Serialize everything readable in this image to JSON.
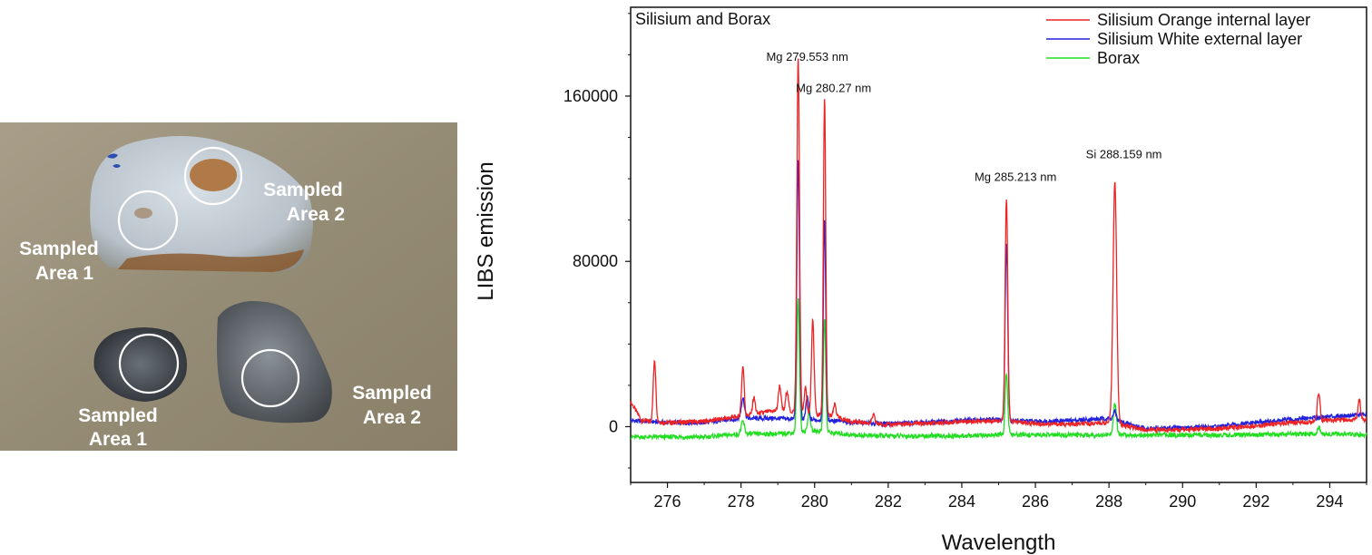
{
  "photo": {
    "sample_top": {
      "label_1_line1": "Sampled",
      "label_1_line2": "Area 1",
      "label_2_line1": "Sampled",
      "label_2_line2": "Area 2"
    },
    "sample_bottom": {
      "label_1_line1": "Sampled",
      "label_1_line2": "Area 1",
      "label_2_line1": "Sampled",
      "label_2_line2": "Area 2"
    }
  },
  "chart_data": {
    "type": "line",
    "title": "Silisium and Borax",
    "xlabel": "Wavelength",
    "ylabel": "LIBS emission",
    "xlim": [
      275,
      295
    ],
    "ylim": [
      -27000,
      203000
    ],
    "xticks": [
      276,
      278,
      280,
      282,
      284,
      286,
      288,
      290,
      292,
      294
    ],
    "yticks": [
      0,
      80000,
      160000
    ],
    "ytick_labels": [
      "0",
      "80000",
      "160000"
    ],
    "legend_position": "top-right",
    "colors": {
      "orange_layer": "#ee2222",
      "white_layer": "#2222dd",
      "borax": "#22dd22"
    },
    "annotations": [
      {
        "text": "Mg 279.553 nm",
        "x": 279.553,
        "y": 177000
      },
      {
        "text": "Mg 280.27 nm",
        "x": 280.27,
        "y": 162000
      },
      {
        "text": "Mg 285.213 nm",
        "x": 285.213,
        "y": 119000
      },
      {
        "text": "Si 288.159 nm",
        "x": 288.159,
        "y": 130000
      }
    ],
    "series": [
      {
        "name": "Silisium Orange internal layer",
        "color": "#ee2222",
        "baseline": [
          [
            275,
            12000
          ],
          [
            275.3,
            3000
          ],
          [
            276,
            2000
          ],
          [
            277,
            2500
          ],
          [
            278,
            5000
          ],
          [
            279,
            8000
          ],
          [
            280.5,
            5000
          ],
          [
            281,
            2500
          ],
          [
            282,
            1000
          ],
          [
            283,
            1500
          ],
          [
            284,
            2500
          ],
          [
            285,
            3000
          ],
          [
            286,
            1500
          ],
          [
            287,
            1000
          ],
          [
            288,
            2000
          ],
          [
            289,
            -1500
          ],
          [
            290,
            -1500
          ],
          [
            291,
            -1000
          ],
          [
            292,
            500
          ],
          [
            293,
            2000
          ],
          [
            294,
            3000
          ],
          [
            295,
            3500
          ]
        ],
        "peaks": [
          [
            275.65,
            30000,
            0.05
          ],
          [
            278.05,
            24000,
            0.05
          ],
          [
            278.35,
            8000,
            0.05
          ],
          [
            279.05,
            12000,
            0.05
          ],
          [
            279.25,
            10000,
            0.05
          ],
          [
            279.553,
            172000,
            0.05
          ],
          [
            279.75,
            12000,
            0.05
          ],
          [
            279.95,
            45000,
            0.05
          ],
          [
            280.27,
            154000,
            0.045
          ],
          [
            280.55,
            6000,
            0.05
          ],
          [
            281.6,
            4000,
            0.05
          ],
          [
            285.213,
            108000,
            0.05
          ],
          [
            288.159,
            117000,
            0.07
          ],
          [
            293.7,
            14000,
            0.05
          ],
          [
            294.8,
            10000,
            0.05
          ]
        ]
      },
      {
        "name": "Silisium White external layer",
        "color": "#2222dd",
        "baseline": [
          [
            275,
            3000
          ],
          [
            276,
            2000
          ],
          [
            277,
            2000
          ],
          [
            278,
            4000
          ],
          [
            279,
            4000
          ],
          [
            280.5,
            3000
          ],
          [
            281,
            2000
          ],
          [
            282,
            1500
          ],
          [
            283,
            2000
          ],
          [
            284,
            3000
          ],
          [
            285,
            3500
          ],
          [
            286,
            2500
          ],
          [
            287,
            3000
          ],
          [
            288,
            4000
          ],
          [
            289,
            -1000
          ],
          [
            290,
            -500
          ],
          [
            291,
            0
          ],
          [
            292,
            2000
          ],
          [
            293,
            3500
          ],
          [
            294,
            5000
          ],
          [
            295,
            6000
          ]
        ],
        "peaks": [
          [
            278.05,
            10000,
            0.06
          ],
          [
            279.553,
            126000,
            0.05
          ],
          [
            279.8,
            11000,
            0.05
          ],
          [
            280.27,
            98000,
            0.045
          ],
          [
            285.213,
            86000,
            0.05
          ],
          [
            288.159,
            4000,
            0.06
          ]
        ]
      },
      {
        "name": "Borax",
        "color": "#22dd22",
        "baseline": [
          [
            275,
            -5000
          ],
          [
            276,
            -5000
          ],
          [
            277,
            -5000
          ],
          [
            278,
            -3500
          ],
          [
            279,
            -3500
          ],
          [
            280,
            -2000
          ],
          [
            281,
            -4000
          ],
          [
            282,
            -4500
          ],
          [
            283,
            -4500
          ],
          [
            284,
            -4500
          ],
          [
            285,
            -4000
          ],
          [
            286,
            -4000
          ],
          [
            287,
            -4000
          ],
          [
            288,
            -4000
          ],
          [
            289,
            -4000
          ],
          [
            290,
            -4000
          ],
          [
            291,
            -4000
          ],
          [
            292,
            -4000
          ],
          [
            293,
            -3500
          ],
          [
            294,
            -3500
          ],
          [
            295,
            -4000
          ]
        ],
        "peaks": [
          [
            278.05,
            6000,
            0.06
          ],
          [
            279.553,
            64000,
            0.05
          ],
          [
            279.85,
            10000,
            0.05
          ],
          [
            280.27,
            55000,
            0.045
          ],
          [
            285.213,
            30000,
            0.05
          ],
          [
            288.159,
            15000,
            0.06
          ],
          [
            293.7,
            3000,
            0.05
          ]
        ]
      }
    ]
  }
}
